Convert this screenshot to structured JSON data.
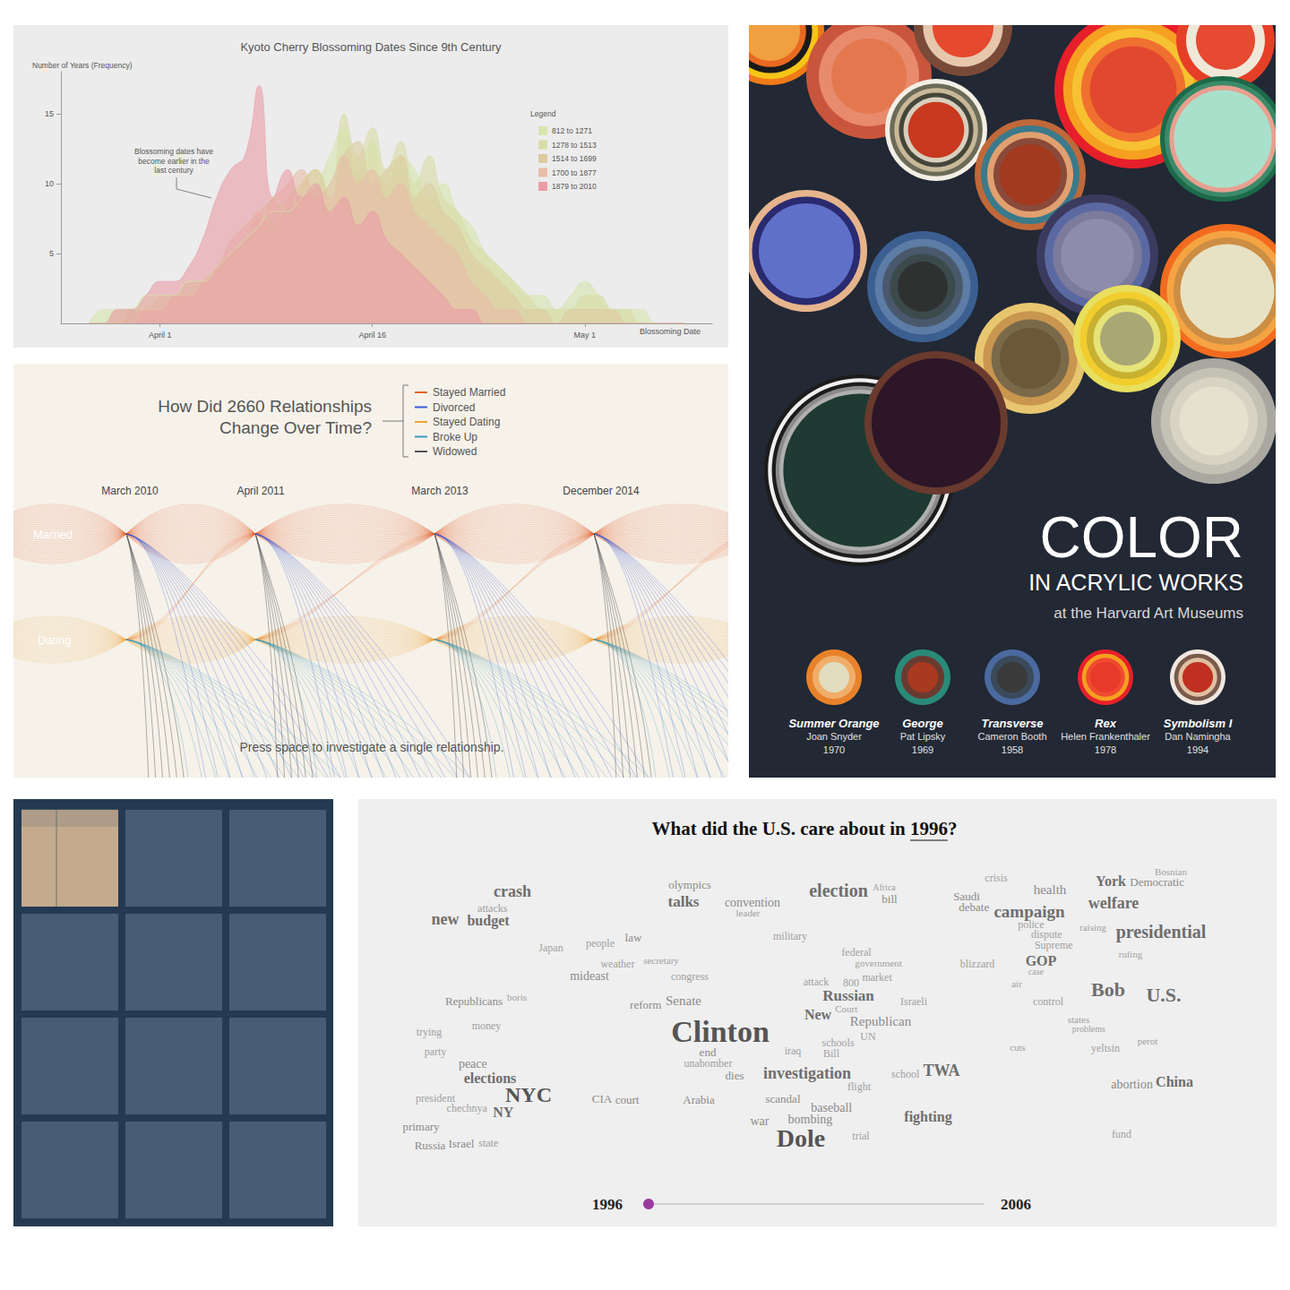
{
  "chart_data": [
    {
      "type": "area",
      "title": "Kyoto Cherry Blossoming Dates Since 9th Century",
      "y_label": "Number of Years (Frequency)",
      "x_label": "Blossoming Date",
      "annotation": "Blossoming dates have become earlier in the last century",
      "legend_title": "Legend",
      "legend": "top-right",
      "grid": false,
      "x": [
        86,
        87,
        88,
        89,
        90,
        91,
        92,
        93,
        94,
        95,
        96,
        97,
        98,
        99,
        100,
        101,
        102,
        103,
        104,
        105,
        106,
        107,
        108,
        109,
        110,
        111,
        112,
        113,
        114,
        115,
        116,
        117,
        118,
        119,
        120,
        121,
        122,
        123,
        124,
        125,
        126,
        127,
        128
      ],
      "xlim": [
        84,
        130
      ],
      "xticks": [
        {
          "value": 91,
          "label": "April 1"
        },
        {
          "value": 106,
          "label": "April 16"
        },
        {
          "value": 121,
          "label": "May 1"
        }
      ],
      "ylim": [
        0,
        18
      ],
      "yticks": [
        5,
        10,
        15
      ],
      "series": [
        {
          "name": "812 to 1271",
          "color": "#d6e6ad",
          "values": [
            0,
            1,
            1,
            1,
            2,
            2,
            2,
            3,
            3,
            4,
            5,
            6,
            7,
            8,
            8,
            9,
            10,
            12,
            14,
            11,
            13,
            10,
            12,
            11,
            9,
            10,
            8,
            7,
            5,
            4,
            3,
            2,
            2,
            1,
            2,
            3,
            2,
            1,
            1,
            1,
            0,
            0,
            0
          ]
        },
        {
          "name": "1278 to 1513",
          "color": "#d9dca6",
          "values": [
            0,
            0,
            1,
            1,
            1,
            2,
            2,
            3,
            3,
            4,
            5,
            6,
            7,
            9,
            8,
            10,
            11,
            9,
            15,
            12,
            14,
            11,
            13,
            10,
            12,
            9,
            8,
            6,
            5,
            4,
            3,
            2,
            1,
            1,
            1,
            2,
            2,
            1,
            1,
            0,
            0,
            0,
            0
          ]
        },
        {
          "name": "1514 to 1699",
          "color": "#dccb9f",
          "values": [
            0,
            0,
            0,
            1,
            1,
            1,
            2,
            2,
            3,
            4,
            5,
            6,
            8,
            7,
            9,
            10,
            11,
            9,
            12,
            13,
            10,
            11,
            12,
            9,
            10,
            8,
            7,
            5,
            4,
            3,
            2,
            1,
            1,
            0,
            1,
            1,
            1,
            1,
            0,
            0,
            0,
            0,
            0
          ]
        },
        {
          "name": "1700 to 1877",
          "color": "#e8bda6",
          "values": [
            0,
            0,
            0,
            0,
            1,
            1,
            2,
            2,
            3,
            4,
            6,
            7,
            8,
            9,
            10,
            11,
            9,
            10,
            12,
            10,
            11,
            9,
            10,
            8,
            7,
            6,
            5,
            3,
            2,
            1,
            1,
            0,
            0,
            0,
            0,
            0,
            0,
            0,
            0,
            0,
            0,
            0,
            0
          ]
        },
        {
          "name": "1879 to 2010",
          "color": "#e99ca6",
          "values": [
            0,
            0,
            1,
            1,
            2,
            3,
            3,
            4,
            6,
            9,
            11,
            12,
            17,
            9,
            11,
            9,
            10,
            8,
            9,
            7,
            8,
            6,
            5,
            4,
            3,
            2,
            1,
            1,
            0,
            0,
            0,
            0,
            0,
            0,
            0,
            0,
            0,
            0,
            0,
            0,
            0,
            0,
            0
          ]
        }
      ]
    },
    {
      "type": "flow",
      "title": "How Did 2660 Relationships Change Over Time?",
      "categories": [
        "March 2010",
        "April 2011",
        "March 2013",
        "December 2014"
      ],
      "states": [
        "Married",
        "Dating"
      ],
      "series": [
        {
          "name": "Stayed Married",
          "color": "#e4612c"
        },
        {
          "name": "Divorced",
          "color": "#3b5bd6"
        },
        {
          "name": "Stayed Dating",
          "color": "#f2a33a"
        },
        {
          "name": "Broke Up",
          "color": "#3a9bbd"
        },
        {
          "name": "Widowed",
          "color": "#555555"
        }
      ],
      "note": "Press space to investigate a single relationship."
    },
    {
      "type": "poster",
      "title": "COLOR",
      "subtitle": "IN ACRYLIC WORKS",
      "note": "at the Harvard Art Museums",
      "works": [
        {
          "name": "Summer Orange",
          "artist": "Joan Snyder",
          "year": 1970,
          "colors": [
            "#e8822a",
            "#f0ae6a",
            "#e2dcc0"
          ]
        },
        {
          "name": "George",
          "artist": "Pat Lipsky",
          "year": 1969,
          "colors": [
            "#2a8a7a",
            "#6a3a30",
            "#a83a20"
          ]
        },
        {
          "name": "Transverse",
          "artist": "Cameron Booth",
          "year": 1958,
          "colors": [
            "#4a6aa0",
            "#3a4a5a",
            "#3a3a3a"
          ]
        },
        {
          "name": "Rex",
          "artist": "Helen Frankenthaler",
          "year": 1978,
          "colors": [
            "#e8202a",
            "#f5a020",
            "#f04a30",
            "#e83a2a"
          ]
        },
        {
          "name": "Symbolism I",
          "artist": "Dan Namingha",
          "year": 1994,
          "colors": [
            "#f0e8e0",
            "#7a5a4a",
            "#e0c0a0",
            "#c03020"
          ]
        }
      ]
    },
    {
      "type": "grid",
      "colors": [
        "#c4ab8e",
        "#475d75",
        "#475d75",
        "#475d75",
        "#475d75",
        "#475d75",
        "#475d75",
        "#475d75",
        "#475d75",
        "#475d75",
        "#475d75",
        "#475d75"
      ]
    },
    {
      "type": "word_cloud",
      "title": "What did the U.S. care about in 1996?",
      "slider": {
        "min": 1996,
        "max": 2006,
        "value": 1996
      },
      "words": [
        {
          "text": "crash",
          "value": 18
        },
        {
          "text": "attacks",
          "value": 12
        },
        {
          "text": "new",
          "value": 18
        },
        {
          "text": "budget",
          "value": 16
        },
        {
          "text": "olympics",
          "value": 13
        },
        {
          "text": "talks",
          "value": 17
        },
        {
          "text": "convention",
          "value": 14
        },
        {
          "text": "leader",
          "value": 11
        },
        {
          "text": "election",
          "value": 20
        },
        {
          "text": "Africa",
          "value": 10
        },
        {
          "text": "bill",
          "value": 13
        },
        {
          "text": "Saudi",
          "value": 13
        },
        {
          "text": "debate",
          "value": 13
        },
        {
          "text": "crisis",
          "value": 12
        },
        {
          "text": "health",
          "value": 15
        },
        {
          "text": "York",
          "value": 16
        },
        {
          "text": "Democratic",
          "value": 13
        },
        {
          "text": "Bosnian",
          "value": 11
        },
        {
          "text": "welfare",
          "value": 18
        },
        {
          "text": "campaign",
          "value": 19
        },
        {
          "text": "police",
          "value": 12
        },
        {
          "text": "dispute",
          "value": 12
        },
        {
          "text": "raising",
          "value": 11
        },
        {
          "text": "presidential",
          "value": 20
        },
        {
          "text": "Supreme",
          "value": 12
        },
        {
          "text": "ruling",
          "value": 11
        },
        {
          "text": "GOP",
          "value": 16
        },
        {
          "text": "case",
          "value": 10
        },
        {
          "text": "Japan",
          "value": 12
        },
        {
          "text": "people",
          "value": 12
        },
        {
          "text": "law",
          "value": 13
        },
        {
          "text": "military",
          "value": 12
        },
        {
          "text": "federal",
          "value": 12
        },
        {
          "text": "government",
          "value": 11
        },
        {
          "text": "weather",
          "value": 12
        },
        {
          "text": "secretary",
          "value": 11
        },
        {
          "text": "mideast",
          "value": 14
        },
        {
          "text": "congress",
          "value": 12
        },
        {
          "text": "blizzard",
          "value": 12
        },
        {
          "text": "attack",
          "value": 12
        },
        {
          "text": "800",
          "value": 12
        },
        {
          "text": "market",
          "value": 12
        },
        {
          "text": "air",
          "value": 11
        },
        {
          "text": "Bob",
          "value": 22
        },
        {
          "text": "U.S.",
          "value": 22
        },
        {
          "text": "Republicans",
          "value": 13
        },
        {
          "text": "boris",
          "value": 11
        },
        {
          "text": "reform",
          "value": 13
        },
        {
          "text": "Senate",
          "value": 15
        },
        {
          "text": "Russian",
          "value": 17
        },
        {
          "text": "Israeli",
          "value": 12
        },
        {
          "text": "control",
          "value": 12
        },
        {
          "text": "New",
          "value": 16
        },
        {
          "text": "Court",
          "value": 11
        },
        {
          "text": "Republican",
          "value": 15
        },
        {
          "text": "states",
          "value": 11
        },
        {
          "text": "problems",
          "value": 10
        },
        {
          "text": "trying",
          "value": 12
        },
        {
          "text": "money",
          "value": 12
        },
        {
          "text": "Clinton",
          "value": 34
        },
        {
          "text": "UN",
          "value": 12
        },
        {
          "text": "end",
          "value": 13
        },
        {
          "text": "iraq",
          "value": 12
        },
        {
          "text": "Bill",
          "value": 12
        },
        {
          "text": "schools",
          "value": 12
        },
        {
          "text": "cuts",
          "value": 11
        },
        {
          "text": "yeltsin",
          "value": 12
        },
        {
          "text": "perot",
          "value": 11
        },
        {
          "text": "party",
          "value": 12
        },
        {
          "text": "peace",
          "value": 14
        },
        {
          "text": "elections",
          "value": 16
        },
        {
          "text": "unabomber",
          "value": 12
        },
        {
          "text": "dies",
          "value": 13
        },
        {
          "text": "investigation",
          "value": 18
        },
        {
          "text": "school",
          "value": 12
        },
        {
          "text": "TWA",
          "value": 18
        },
        {
          "text": "abortion",
          "value": 14
        },
        {
          "text": "China",
          "value": 16
        },
        {
          "text": "president",
          "value": 12
        },
        {
          "text": "NYC",
          "value": 24
        },
        {
          "text": "chechnya",
          "value": 12
        },
        {
          "text": "NY",
          "value": 16
        },
        {
          "text": "CIA",
          "value": 13
        },
        {
          "text": "court",
          "value": 13
        },
        {
          "text": "Arabia",
          "value": 13
        },
        {
          "text": "scandal",
          "value": 13
        },
        {
          "text": "flight",
          "value": 12
        },
        {
          "text": "fighting",
          "value": 16
        },
        {
          "text": "primary",
          "value": 13
        },
        {
          "text": "war",
          "value": 14
        },
        {
          "text": "bombing",
          "value": 14
        },
        {
          "text": "baseball",
          "value": 14
        },
        {
          "text": "Dole",
          "value": 28
        },
        {
          "text": "trial",
          "value": 12
        },
        {
          "text": "fund",
          "value": 12
        },
        {
          "text": "Russia",
          "value": 13
        },
        {
          "text": "Israel",
          "value": 13
        },
        {
          "text": "state",
          "value": 12
        }
      ]
    }
  ]
}
